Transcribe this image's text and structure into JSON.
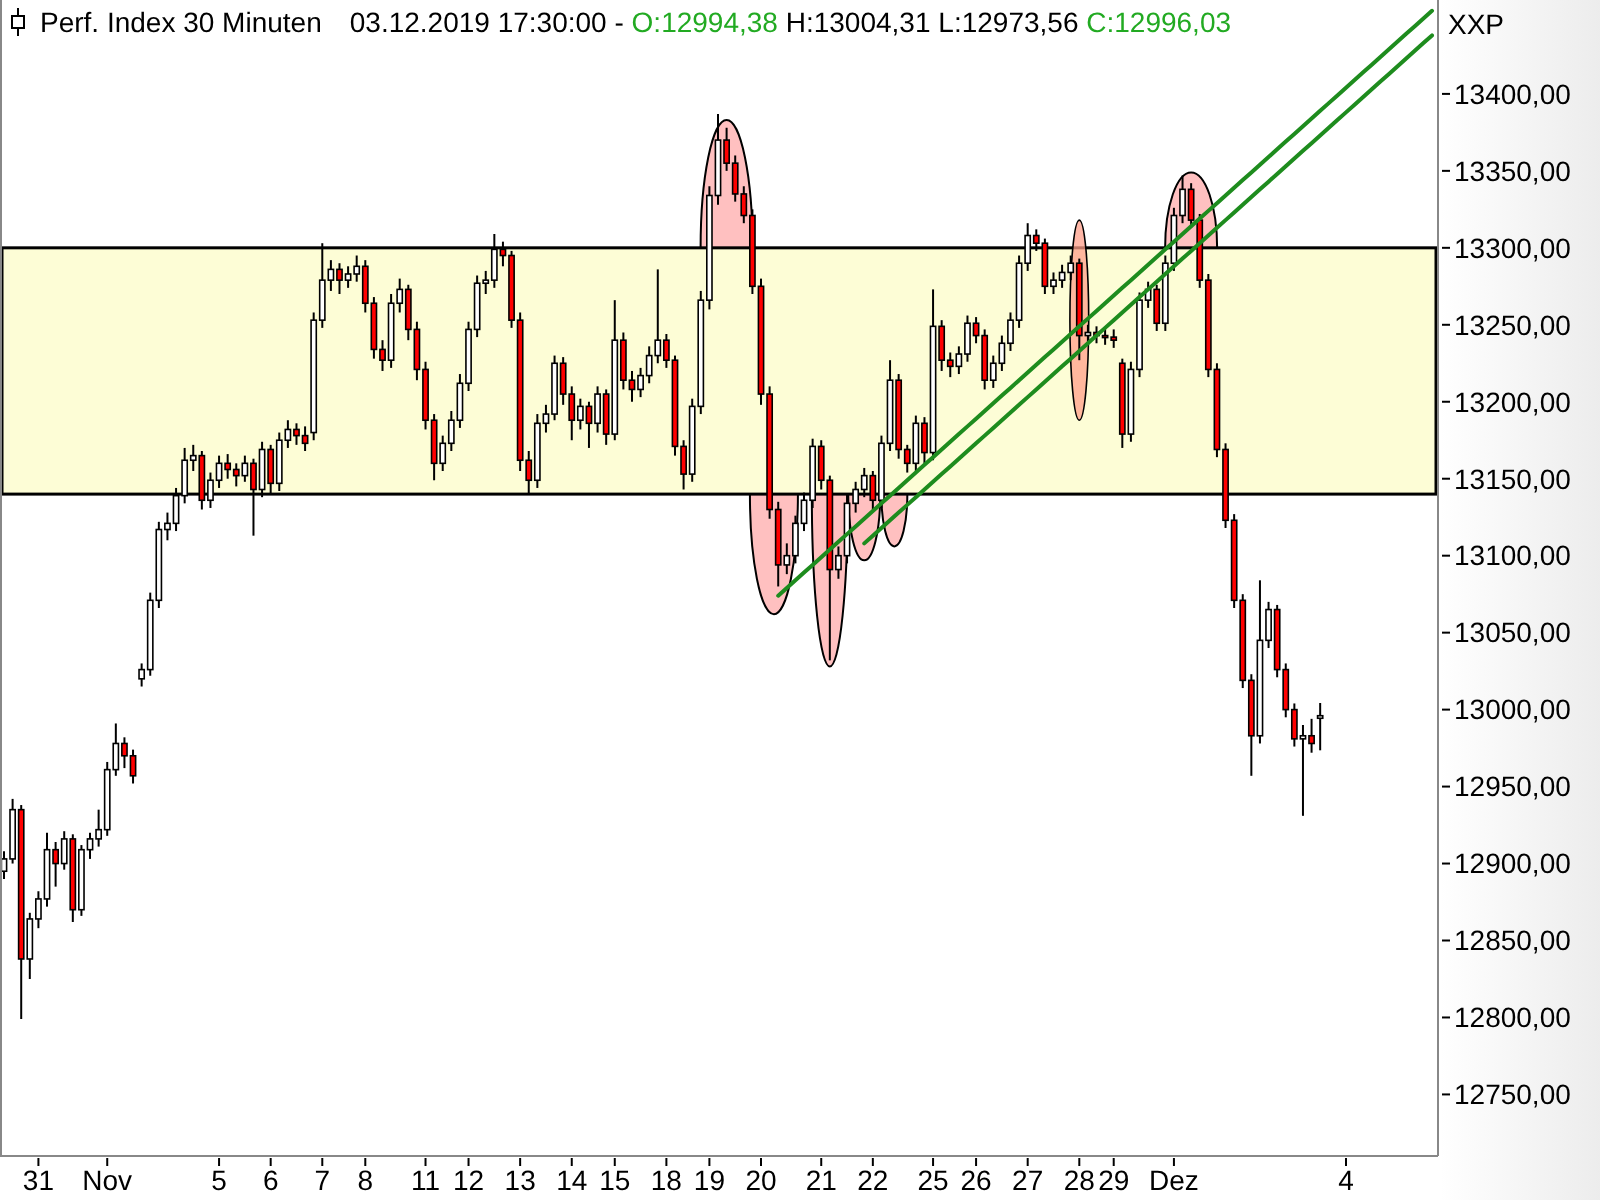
{
  "chart_data": {
    "type": "candlestick",
    "title": "Perf. Index 30 Minuten",
    "subtitle": "03.12.2019 17:30:00 - O:12994,38 H:13004,31 L:12973,56 C:12996,03",
    "annotations": [
      "XXP"
    ],
    "ylim": [
      12710,
      13461
    ],
    "categories": [
      null,
      null,
      null,
      null,
      "31",
      null,
      null,
      null,
      null,
      null,
      null,
      null,
      "Nov",
      null,
      null,
      null,
      null,
      null,
      null,
      null,
      null,
      null,
      null,
      null,
      null,
      "5",
      null,
      null,
      null,
      null,
      null,
      "6",
      null,
      null,
      null,
      null,
      null,
      "7",
      null,
      null,
      null,
      null,
      "8",
      null,
      null,
      null,
      null,
      null,
      null,
      "11",
      null,
      null,
      null,
      null,
      "12",
      null,
      null,
      null,
      null,
      null,
      "13",
      null,
      null,
      null,
      null,
      null,
      "14",
      null,
      null,
      null,
      null,
      "15",
      null,
      null,
      null,
      null,
      null,
      "18",
      null,
      null,
      null,
      null,
      "19",
      null,
      null,
      null,
      null,
      null,
      "20",
      null,
      null,
      null,
      null,
      null,
      null,
      "21",
      null,
      null,
      null,
      null,
      null,
      "22",
      null,
      null,
      null,
      null,
      null,
      null,
      "25",
      null,
      null,
      null,
      null,
      "26",
      null,
      null,
      null,
      null,
      null,
      "27",
      null,
      null,
      null,
      null,
      null,
      "28",
      null,
      null,
      null,
      "29",
      null,
      null,
      null,
      null,
      null,
      null,
      "Dez",
      null,
      null,
      null,
      null,
      null,
      null,
      null,
      null,
      null,
      null,
      null,
      null,
      null,
      null,
      null,
      null,
      null,
      null,
      null,
      "4",
      null,
      null,
      null,
      null,
      null,
      null,
      null,
      null,
      null,
      null
    ],
    "yticks": [
      {
        "value": 12750,
        "label": "12750,00"
      },
      {
        "value": 12800,
        "label": "12800,00"
      },
      {
        "value": 12850,
        "label": "12850,00"
      },
      {
        "value": 12900,
        "label": "12900,00"
      },
      {
        "value": 12950,
        "label": "12950,00"
      },
      {
        "value": 13000,
        "label": "13000,00"
      },
      {
        "value": 13050,
        "label": "13050,00"
      },
      {
        "value": 13100,
        "label": "13100,00"
      },
      {
        "value": 13150,
        "label": "13150,00"
      },
      {
        "value": 13200,
        "label": "13200,00"
      },
      {
        "value": 13250,
        "label": "13250,00"
      },
      {
        "value": 13300,
        "label": "13300,00"
      },
      {
        "value": 13350,
        "label": "13350,00"
      },
      {
        "value": 13400,
        "label": "13400,00"
      }
    ],
    "bands": [
      {
        "axis": "y",
        "from": 13140,
        "to": 13300,
        "color": "#fdfdd6"
      }
    ],
    "ohlc": [
      [
        12895,
        12908,
        12890,
        12903
      ],
      [
        12903,
        12942,
        12900,
        12935
      ],
      [
        12935,
        12938,
        12799,
        12838
      ],
      [
        12838,
        12868,
        12825,
        12864
      ],
      [
        12864,
        12882,
        12858,
        12877
      ],
      [
        12877,
        12920,
        12872,
        12909
      ],
      [
        12909,
        12914,
        12885,
        12900
      ],
      [
        12900,
        12921,
        12896,
        12916
      ],
      [
        12916,
        12919,
        12862,
        12870
      ],
      [
        12870,
        12912,
        12866,
        12909
      ],
      [
        12909,
        12920,
        12903,
        12916
      ],
      [
        12916,
        12935,
        12911,
        12922
      ],
      [
        12922,
        12966,
        12918,
        12961
      ],
      [
        12961,
        12991,
        12957,
        12978
      ],
      [
        12978,
        12982,
        12962,
        12970
      ],
      [
        12970,
        12974,
        12952,
        12957
      ],
      [
        13020,
        13030,
        13015,
        13026
      ],
      [
        13026,
        13076,
        13022,
        13071
      ],
      [
        13071,
        13122,
        13066,
        13117
      ],
      [
        13117,
        13128,
        13110,
        13121
      ],
      [
        13121,
        13144,
        13116,
        13139
      ],
      [
        13139,
        13170,
        13134,
        13162
      ],
      [
        13162,
        13172,
        13155,
        13165
      ],
      [
        13165,
        13168,
        13130,
        13136
      ],
      [
        13136,
        13154,
        13131,
        13149
      ],
      [
        13149,
        13165,
        13144,
        13160
      ],
      [
        13160,
        13166,
        13150,
        13156
      ],
      [
        13156,
        13160,
        13145,
        13152
      ],
      [
        13152,
        13165,
        13148,
        13160
      ],
      [
        13160,
        13163,
        13113,
        13143
      ],
      [
        13143,
        13174,
        13138,
        13169
      ],
      [
        13169,
        13172,
        13140,
        13147
      ],
      [
        13147,
        13180,
        13142,
        13175
      ],
      [
        13175,
        13188,
        13170,
        13182
      ],
      [
        13182,
        13186,
        13172,
        13178
      ],
      [
        13178,
        13184,
        13168,
        13173
      ],
      [
        13180,
        13258,
        13175,
        13253
      ],
      [
        13253,
        13303,
        13248,
        13279
      ],
      [
        13279,
        13292,
        13272,
        13286
      ],
      [
        13286,
        13290,
        13270,
        13279
      ],
      [
        13279,
        13288,
        13274,
        13283
      ],
      [
        13283,
        13295,
        13278,
        13288
      ],
      [
        13288,
        13292,
        13258,
        13264
      ],
      [
        13264,
        13268,
        13228,
        13234
      ],
      [
        13234,
        13240,
        13220,
        13227
      ],
      [
        13227,
        13270,
        13222,
        13264
      ],
      [
        13264,
        13280,
        13258,
        13273
      ],
      [
        13273,
        13276,
        13240,
        13247
      ],
      [
        13247,
        13252,
        13214,
        13221
      ],
      [
        13221,
        13226,
        13182,
        13188
      ],
      [
        13188,
        13192,
        13149,
        13160
      ],
      [
        13160,
        13178,
        13155,
        13173
      ],
      [
        13173,
        13194,
        13168,
        13188
      ],
      [
        13188,
        13218,
        13183,
        13212
      ],
      [
        13212,
        13252,
        13207,
        13247
      ],
      [
        13247,
        13282,
        13242,
        13277
      ],
      [
        13277,
        13285,
        13270,
        13279
      ],
      [
        13279,
        13309,
        13274,
        13299
      ],
      [
        13299,
        13304,
        13288,
        13295
      ],
      [
        13295,
        13298,
        13248,
        13253
      ],
      [
        13253,
        13258,
        13155,
        13162
      ],
      [
        13162,
        13168,
        13140,
        13149
      ],
      [
        13149,
        13192,
        13144,
        13186
      ],
      [
        13186,
        13198,
        13180,
        13192
      ],
      [
        13192,
        13230,
        13188,
        13225
      ],
      [
        13225,
        13229,
        13198,
        13205
      ],
      [
        13205,
        13210,
        13175,
        13188
      ],
      [
        13188,
        13202,
        13182,
        13197
      ],
      [
        13197,
        13200,
        13170,
        13186
      ],
      [
        13186,
        13210,
        13180,
        13205
      ],
      [
        13205,
        13208,
        13172,
        13179
      ],
      [
        13179,
        13266,
        13175,
        13240
      ],
      [
        13240,
        13245,
        13208,
        13214
      ],
      [
        13214,
        13220,
        13200,
        13208
      ],
      [
        13208,
        13222,
        13203,
        13217
      ],
      [
        13217,
        13236,
        13212,
        13230
      ],
      [
        13230,
        13286,
        13225,
        13240
      ],
      [
        13240,
        13244,
        13222,
        13227
      ],
      [
        13227,
        13230,
        13165,
        13171
      ],
      [
        13171,
        13175,
        13143,
        13153
      ],
      [
        13153,
        13202,
        13148,
        13197
      ],
      [
        13197,
        13272,
        13192,
        13266
      ],
      [
        13266,
        13340,
        13260,
        13334
      ],
      [
        13334,
        13387,
        13328,
        13370
      ],
      [
        13370,
        13378,
        13350,
        13355
      ],
      [
        13355,
        13360,
        13330,
        13335
      ],
      [
        13335,
        13340,
        13316,
        13321
      ],
      [
        13321,
        13325,
        13270,
        13275
      ],
      [
        13275,
        13280,
        13198,
        13205
      ],
      [
        13205,
        13210,
        13124,
        13130
      ],
      [
        13130,
        13135,
        13080,
        13094
      ],
      [
        13094,
        13108,
        13088,
        13100
      ],
      [
        13100,
        13126,
        13095,
        13121
      ],
      [
        13121,
        13141,
        13116,
        13136
      ],
      [
        13136,
        13176,
        13131,
        13171
      ],
      [
        13171,
        13175,
        13143,
        13149
      ],
      [
        13149,
        13152,
        13032,
        13091
      ],
      [
        13091,
        13106,
        13085,
        13100
      ],
      [
        13100,
        13140,
        13095,
        13134
      ],
      [
        13134,
        13148,
        13128,
        13143
      ],
      [
        13143,
        13157,
        13138,
        13152
      ],
      [
        13152,
        13155,
        13130,
        13136
      ],
      [
        13136,
        13178,
        13131,
        13173
      ],
      [
        13173,
        13227,
        13168,
        13214
      ],
      [
        13214,
        13218,
        13163,
        13169
      ],
      [
        13169,
        13172,
        13154,
        13160
      ],
      [
        13160,
        13191,
        13155,
        13186
      ],
      [
        13186,
        13190,
        13160,
        13167
      ],
      [
        13167,
        13273,
        13162,
        13249
      ],
      [
        13249,
        13253,
        13220,
        13227
      ],
      [
        13227,
        13232,
        13216,
        13223
      ],
      [
        13223,
        13236,
        13218,
        13231
      ],
      [
        13231,
        13256,
        13226,
        13251
      ],
      [
        13251,
        13255,
        13238,
        13243
      ],
      [
        13243,
        13247,
        13208,
        13214
      ],
      [
        13214,
        13230,
        13209,
        13225
      ],
      [
        13225,
        13243,
        13220,
        13238
      ],
      [
        13238,
        13258,
        13233,
        13253
      ],
      [
        13253,
        13295,
        13248,
        13290
      ],
      [
        13290,
        13316,
        13285,
        13308
      ],
      [
        13308,
        13312,
        13298,
        13303
      ],
      [
        13303,
        13306,
        13270,
        13275
      ],
      [
        13275,
        13284,
        13270,
        13279
      ],
      [
        13279,
        13289,
        13274,
        13284
      ],
      [
        13284,
        13295,
        13279,
        13290
      ],
      [
        13290,
        13293,
        13227,
        13243
      ],
      [
        13243,
        13250,
        13238,
        13245
      ],
      [
        13245,
        13249,
        13238,
        13243
      ],
      [
        13243,
        13248,
        13237,
        13242
      ],
      [
        13242,
        13247,
        13235,
        13240
      ],
      [
        13225,
        13228,
        13170,
        13179
      ],
      [
        13179,
        13226,
        13174,
        13221
      ],
      [
        13221,
        13271,
        13216,
        13266
      ],
      [
        13266,
        13278,
        13261,
        13273
      ],
      [
        13273,
        13276,
        13246,
        13251
      ],
      [
        13251,
        13295,
        13246,
        13290
      ],
      [
        13290,
        13326,
        13285,
        13321
      ],
      [
        13321,
        13347,
        13316,
        13338
      ],
      [
        13338,
        13342,
        13313,
        13318
      ],
      [
        13318,
        13322,
        13274,
        13279
      ],
      [
        13279,
        13283,
        13216,
        13221
      ],
      [
        13221,
        13225,
        13164,
        13169
      ],
      [
        13169,
        13173,
        13118,
        13123
      ],
      [
        13123,
        13127,
        13066,
        13071
      ],
      [
        13071,
        13075,
        13014,
        13019
      ],
      [
        13019,
        13023,
        12957,
        12983
      ],
      [
        12983,
        13084,
        12978,
        13045
      ],
      [
        13045,
        13070,
        13040,
        13065
      ],
      [
        13065,
        13068,
        13021,
        13026
      ],
      [
        13026,
        13030,
        12995,
        13000
      ],
      [
        13000,
        13004,
        12976,
        12981
      ],
      [
        12981,
        12990,
        12931,
        12983
      ],
      [
        12983,
        12994,
        12972,
        12978
      ],
      [
        12994.38,
        13004.31,
        12973.56,
        12996.03
      ],
      null,
      null,
      null,
      null,
      null,
      null,
      null,
      null,
      null,
      null,
      null,
      null,
      null
    ],
    "series": [
      {
        "type": "line",
        "color": "#1e8c1e",
        "values": [
          null,
          null,
          null,
          null,
          null,
          null,
          null,
          null,
          null,
          null,
          null,
          null,
          null,
          null,
          null,
          null,
          null,
          null,
          null,
          null,
          null,
          null,
          null,
          null,
          null,
          null,
          null,
          null,
          null,
          null,
          null,
          null,
          null,
          null,
          null,
          null,
          null,
          null,
          null,
          null,
          null,
          null,
          null,
          null,
          null,
          null,
          null,
          null,
          null,
          null,
          null,
          null,
          null,
          null,
          null,
          null,
          null,
          null,
          null,
          null,
          null,
          null,
          null,
          null,
          null,
          null,
          null,
          null,
          null,
          null,
          null,
          null,
          null,
          null,
          null,
          null,
          null,
          null,
          null,
          null,
          null,
          null,
          null,
          null,
          null,
          null,
          null,
          null,
          null,
          null,
          13074,
          13079,
          13084,
          13089,
          13094,
          13099,
          13104,
          13109,
          13114,
          13119,
          13124,
          13129,
          13134,
          13139,
          13144,
          13149,
          13154,
          13159,
          13164,
          13169,
          13174,
          13179,
          13184,
          13189,
          13194,
          13199,
          13204,
          13209,
          13214,
          13219,
          13224,
          13229,
          13234,
          13239,
          13244,
          13249,
          13254,
          13259,
          13264,
          13269,
          13274,
          13279,
          13284,
          13289,
          13294,
          13299,
          13304,
          13309,
          13314,
          13319,
          13324,
          13329,
          13334,
          13339,
          13344,
          13349,
          13354,
          13359,
          13364,
          13369,
          13374,
          13379,
          13384,
          13389,
          13394,
          13399,
          13404,
          13409,
          13414,
          13419,
          13424,
          13429,
          13434,
          13439,
          13444,
          13449,
          13454
        ]
      },
      {
        "type": "line",
        "color": "#1e8c1e",
        "values": [
          null,
          null,
          null,
          null,
          null,
          null,
          null,
          null,
          null,
          null,
          null,
          null,
          null,
          null,
          null,
          null,
          null,
          null,
          null,
          null,
          null,
          null,
          null,
          null,
          null,
          null,
          null,
          null,
          null,
          null,
          null,
          null,
          null,
          null,
          null,
          null,
          null,
          null,
          null,
          null,
          null,
          null,
          null,
          null,
          null,
          null,
          null,
          null,
          null,
          null,
          null,
          null,
          null,
          null,
          null,
          null,
          null,
          null,
          null,
          null,
          null,
          null,
          null,
          null,
          null,
          null,
          null,
          null,
          null,
          null,
          null,
          null,
          null,
          null,
          null,
          null,
          null,
          null,
          null,
          null,
          null,
          null,
          null,
          null,
          null,
          null,
          null,
          null,
          null,
          null,
          null,
          null,
          null,
          null,
          null,
          null,
          null,
          null,
          null,
          null,
          13108,
          13113,
          13118,
          13123,
          13128,
          13133,
          13138,
          13143,
          13148,
          13153,
          13158,
          13163,
          13168,
          13173,
          13178,
          13183,
          13188,
          13193,
          13198,
          13203,
          13208,
          13213,
          13218,
          13223,
          13228,
          13233,
          13238,
          13243,
          13248,
          13253,
          13258,
          13263,
          13268,
          13273,
          13278,
          13283,
          13288,
          13293,
          13298,
          13303,
          13308,
          13313,
          13318,
          13323,
          13328,
          13333,
          13338,
          13343,
          13348,
          13353,
          13358,
          13363,
          13368,
          13373,
          13378,
          13383,
          13388,
          13393,
          13398,
          13403,
          13408,
          13413,
          13418,
          13423,
          13428,
          13433,
          13438
        ]
      }
    ]
  }
}
